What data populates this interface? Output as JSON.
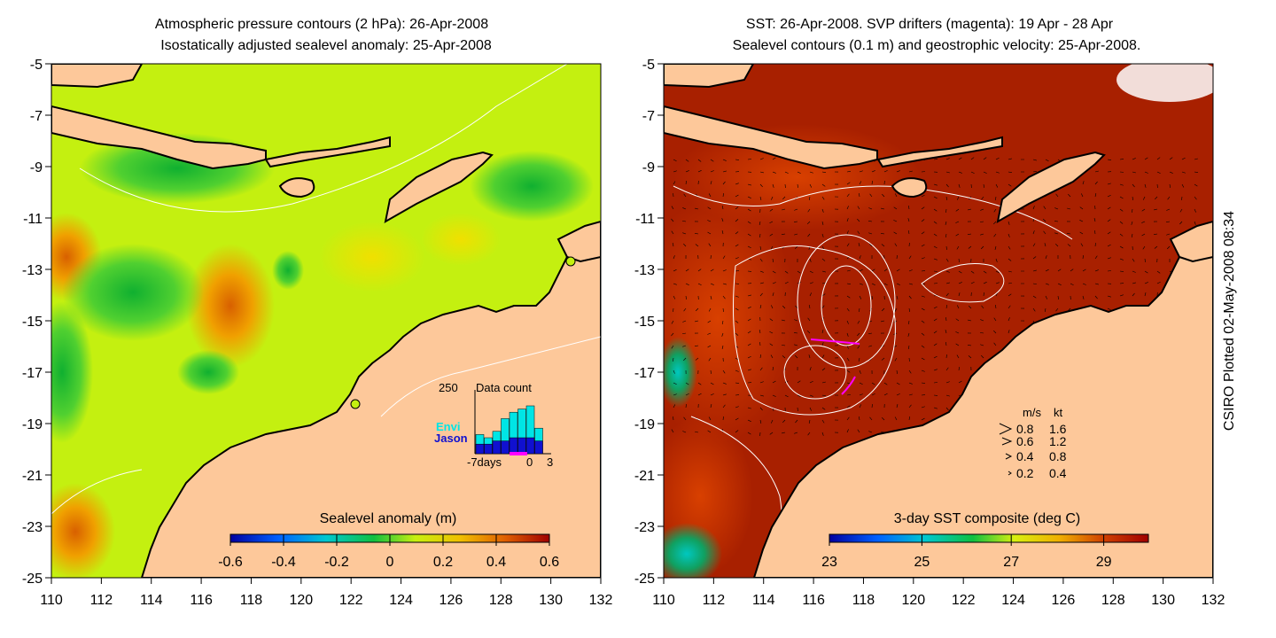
{
  "left_panel": {
    "title_line1": "Atmospheric pressure contours (2 hPa): 26-Apr-2008",
    "title_line2": "Isostatically adjusted sealevel anomaly: 25-Apr-2008",
    "colorbar_label": "Sealevel anomaly (m)",
    "colorbar_ticks": [
      "-0.6",
      "-0.4",
      "-0.2",
      "0",
      "0.2",
      "0.4",
      "0.6"
    ],
    "inset": {
      "max_label": "250",
      "title": "Data count",
      "legend_envi": "Envi",
      "legend_jason": "Jason",
      "xlabel_left": "-7days",
      "xlabel_mid": "0",
      "xlabel_right": "3",
      "envi_color": "#00e5e5",
      "jason_color": "#1010d0"
    }
  },
  "right_panel": {
    "title_line1": "SST: 26-Apr-2008. SVP drifters (magenta): 19 Apr - 28 Apr",
    "title_line2": "Sealevel contours (0.1 m) and geostrophic velocity: 25-Apr-2008.",
    "colorbar_label": "3-day SST composite (deg C)",
    "colorbar_ticks": [
      "23",
      "25",
      "27",
      "29"
    ],
    "velocity_legend": {
      "header_ms": "m/s",
      "header_kt": "kt",
      "rows": [
        {
          "ms": "0.8",
          "kt": "1.6"
        },
        {
          "ms": "0.6",
          "kt": "1.2"
        },
        {
          "ms": "0.4",
          "kt": "0.8"
        },
        {
          "ms": "0.2",
          "kt": "0.4"
        }
      ]
    }
  },
  "axes": {
    "y_ticks": [
      "-5",
      "-7",
      "-9",
      "-11",
      "-13",
      "-15",
      "-17",
      "-19",
      "-21",
      "-23",
      "-25"
    ],
    "x_ticks": [
      "110",
      "112",
      "114",
      "116",
      "118",
      "120",
      "122",
      "124",
      "126",
      "128",
      "130",
      "132"
    ],
    "lat_range": [
      -25,
      -5
    ],
    "lon_range": [
      110,
      132
    ]
  },
  "credit": "CSIRO Plotted 02-May-2008 08:34",
  "colors": {
    "land": "#fdc89a",
    "sla_background": "#c4f010",
    "sst_background": "#a82000"
  }
}
